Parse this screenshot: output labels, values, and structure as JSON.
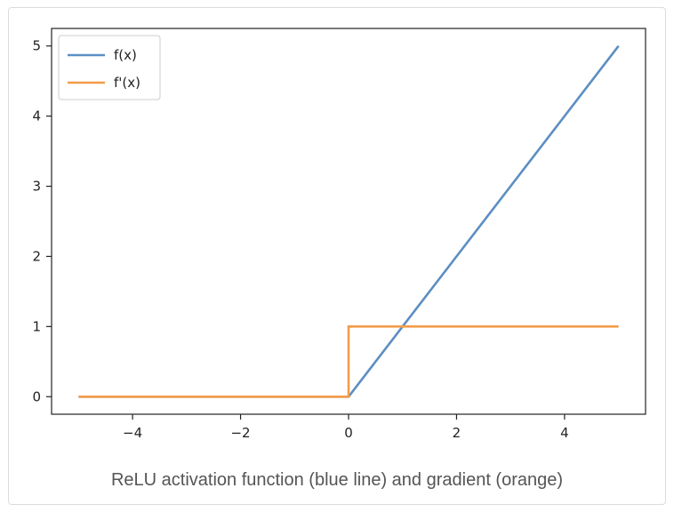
{
  "chart_data": {
    "type": "line",
    "title": "",
    "xlabel": "",
    "ylabel": "",
    "xlim": [
      -5.5,
      5.5
    ],
    "ylim": [
      -0.25,
      5.25
    ],
    "xticks": [
      -4,
      -2,
      0,
      2,
      4
    ],
    "xtick_labels": [
      "−4",
      "−2",
      "0",
      "2",
      "4"
    ],
    "yticks": [
      0,
      1,
      2,
      3,
      4,
      5
    ],
    "ytick_labels": [
      "0",
      "1",
      "2",
      "3",
      "4",
      "5"
    ],
    "grid": false,
    "legend": {
      "placement": "upper-left"
    },
    "series": [
      {
        "name": "f(x)",
        "color": "#5b8fc2",
        "points": [
          [
            -5,
            0
          ],
          [
            0,
            0
          ],
          [
            5,
            5
          ]
        ]
      },
      {
        "name": "f'(x)",
        "color": "#f39c4a",
        "points": [
          [
            -5,
            0
          ],
          [
            0,
            0
          ],
          [
            0,
            1
          ],
          [
            5,
            1
          ]
        ]
      }
    ]
  },
  "caption": "ReLU activation function (blue line) and gradient (orange)"
}
